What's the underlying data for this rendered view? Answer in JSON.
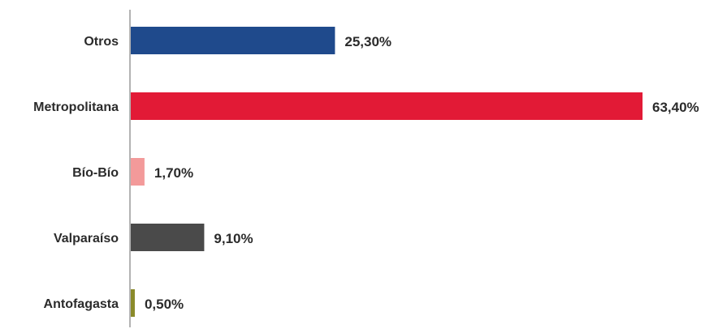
{
  "chart_data": {
    "type": "bar",
    "orientation": "horizontal",
    "title": "",
    "xlabel": "",
    "ylabel": "",
    "grid": false,
    "legend": "none",
    "xlim": [
      0,
      63.4
    ],
    "categories": [
      "Otros",
      "Metropolitana",
      "Bío-Bío",
      "Valparaíso",
      "Antofagasta"
    ],
    "values": [
      25.3,
      63.4,
      1.7,
      9.1,
      0.5
    ],
    "data_labels": [
      "25,30%",
      "63,40%",
      "1,70%",
      "9,10%",
      "0,50%"
    ],
    "colors": [
      "#1f4a8c",
      "#e21a36",
      "#f39a9a",
      "#4a4a4a",
      "#8a8a2a"
    ],
    "axis_color": "#9a9a9a"
  }
}
